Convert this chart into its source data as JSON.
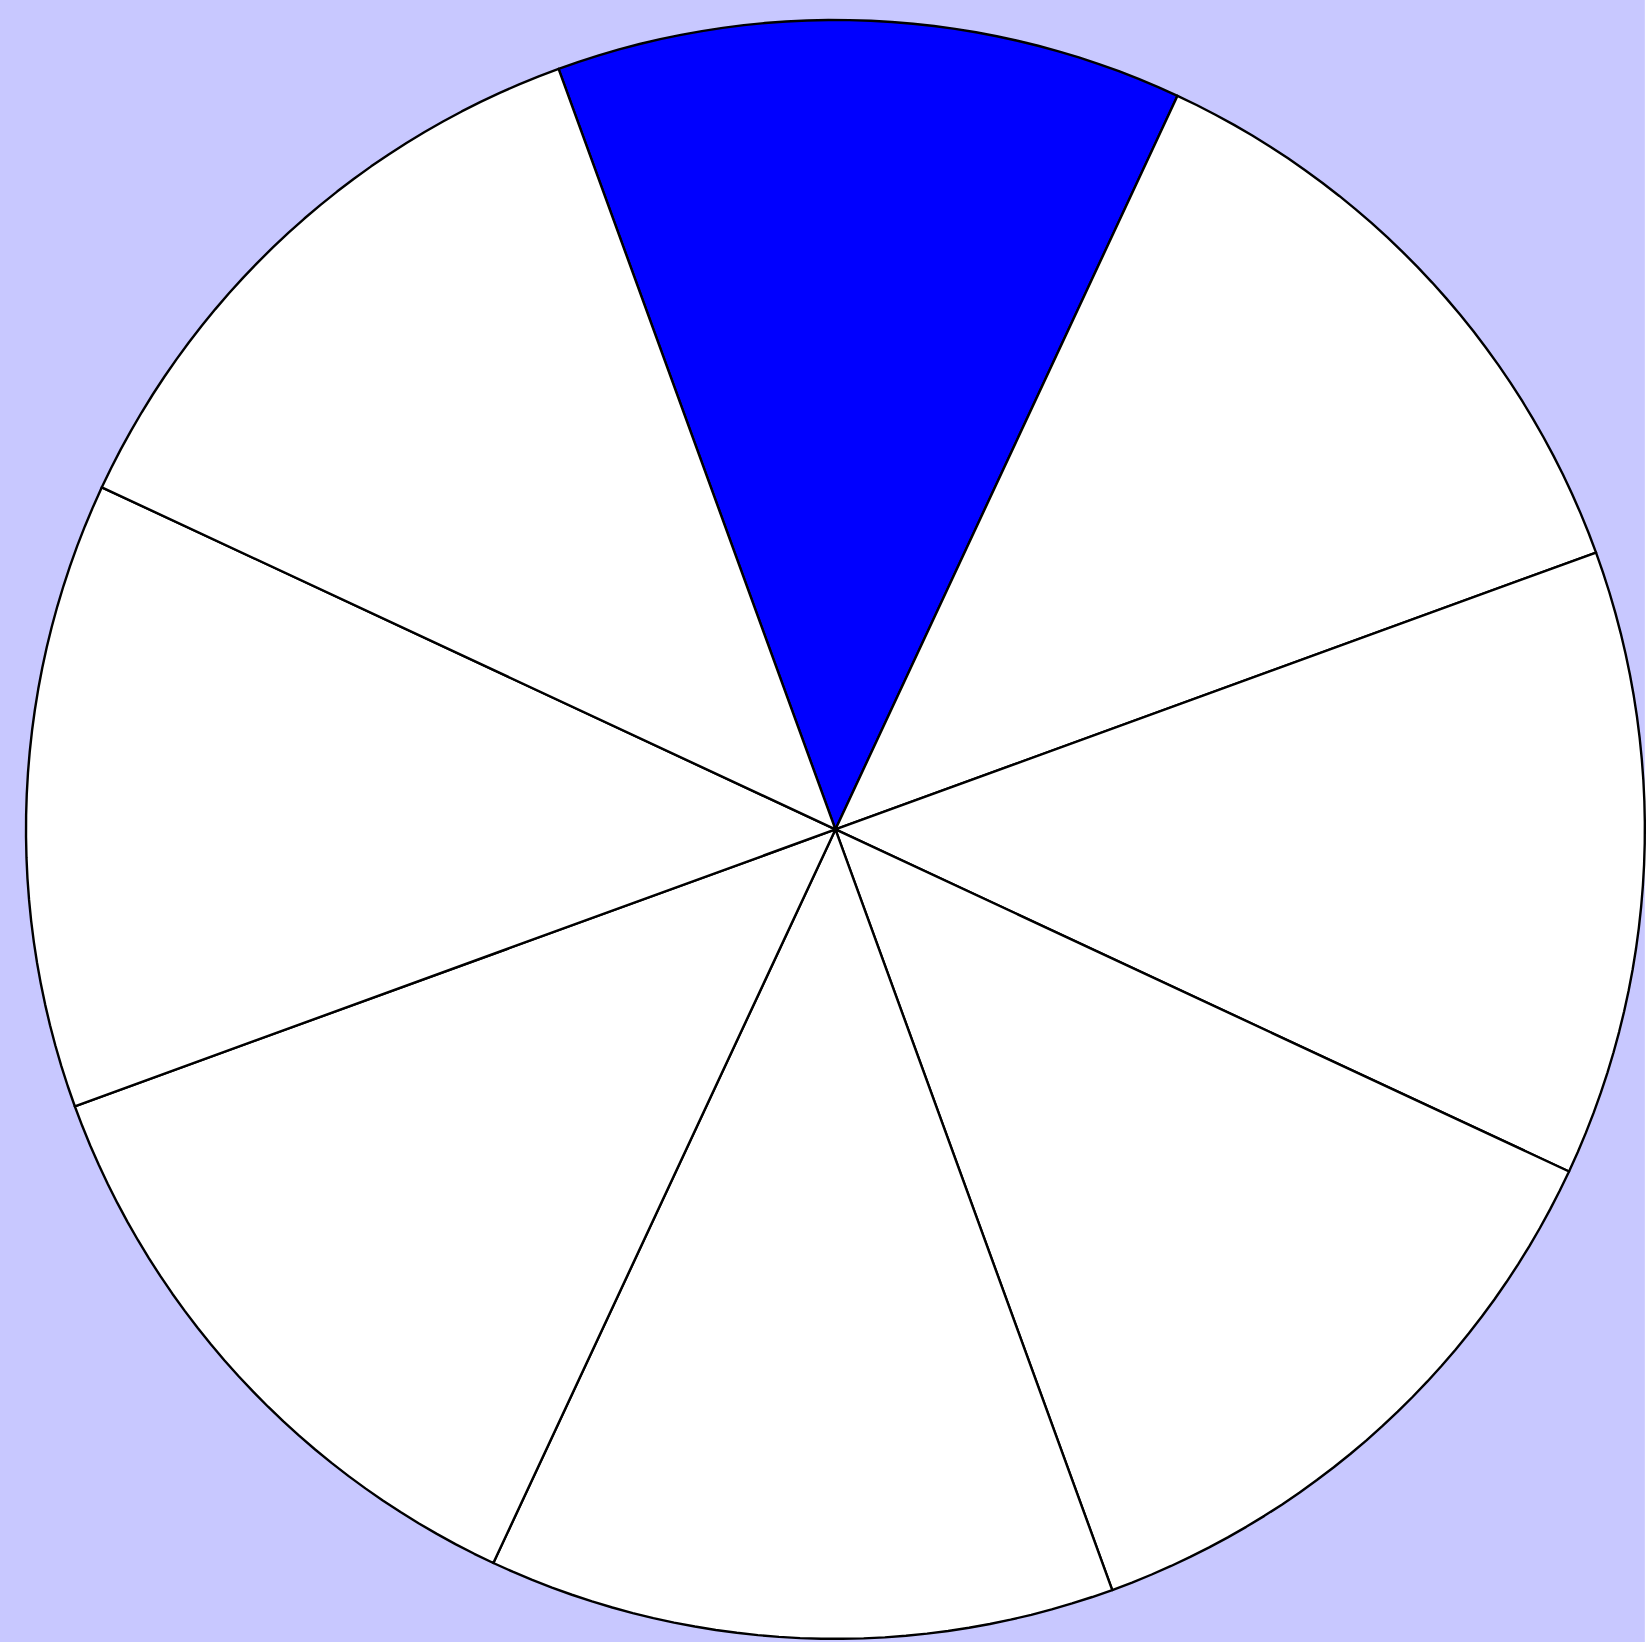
{
  "chart_data": {
    "type": "pie",
    "categories": [
      null,
      null,
      null,
      null,
      null,
      null,
      null,
      null
    ],
    "values": [
      12.5,
      12.5,
      12.5,
      12.5,
      12.5,
      12.5,
      12.5,
      12.5
    ],
    "colors": [
      "#0000ff",
      "#ffffff",
      "#ffffff",
      "#ffffff",
      "#ffffff",
      "#ffffff",
      "#ffffff",
      "#ffffff"
    ]
  }
}
